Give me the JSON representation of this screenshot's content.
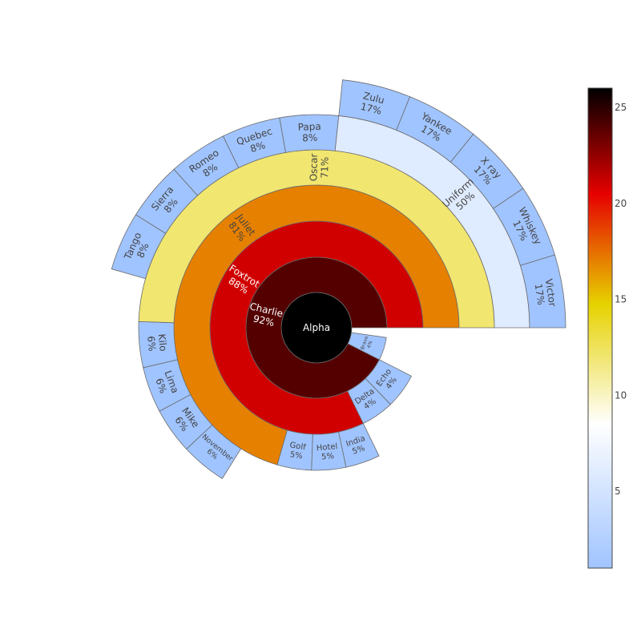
{
  "chart_data": {
    "type": "sunburst",
    "title": "",
    "root": "Alpha",
    "nodes": [
      {
        "id": "Alpha",
        "parent": null,
        "label": "Alpha",
        "percent": "",
        "color_value": 26
      },
      {
        "id": "Bravo",
        "parent": "Alpha",
        "label": "Bravo",
        "percent": "4%",
        "color_value": 1
      },
      {
        "id": "Charlie",
        "parent": "Alpha",
        "label": "Charlie",
        "percent": "92%",
        "color_value": 24
      },
      {
        "id": "Delta",
        "parent": "Charlie",
        "label": "Delta",
        "percent": "4%",
        "color_value": 1
      },
      {
        "id": "Echo",
        "parent": "Charlie",
        "label": "Echo",
        "percent": "4%",
        "color_value": 1
      },
      {
        "id": "Foxtrot",
        "parent": "Charlie",
        "label": "Foxtrot",
        "percent": "88%",
        "color_value": 21
      },
      {
        "id": "Golf",
        "parent": "Foxtrot",
        "label": "Golf",
        "percent": "5%",
        "color_value": 1
      },
      {
        "id": "Hotel",
        "parent": "Foxtrot",
        "label": "Hotel",
        "percent": "5%",
        "color_value": 1
      },
      {
        "id": "India",
        "parent": "Foxtrot",
        "label": "India",
        "percent": "5%",
        "color_value": 1
      },
      {
        "id": "Juliet",
        "parent": "Foxtrot",
        "label": "Juliet",
        "percent": "81%",
        "color_value": 17
      },
      {
        "id": "Kilo",
        "parent": "Juliet",
        "label": "Kilo",
        "percent": "6%",
        "color_value": 1
      },
      {
        "id": "Lima",
        "parent": "Juliet",
        "label": "Lima",
        "percent": "6%",
        "color_value": 1
      },
      {
        "id": "Mike",
        "parent": "Juliet",
        "label": "Mike",
        "percent": "6%",
        "color_value": 1
      },
      {
        "id": "November",
        "parent": "Juliet",
        "label": "November",
        "percent": "6%",
        "color_value": 1
      },
      {
        "id": "Oscar",
        "parent": "Juliet",
        "label": "Oscar",
        "percent": "71%",
        "color_value": 12
      },
      {
        "id": "Papa",
        "parent": "Oscar",
        "label": "Papa",
        "percent": "8%",
        "color_value": 1
      },
      {
        "id": "Quebec",
        "parent": "Oscar",
        "label": "Quebec",
        "percent": "8%",
        "color_value": 1
      },
      {
        "id": "Romeo",
        "parent": "Oscar",
        "label": "Romeo",
        "percent": "8%",
        "color_value": 1
      },
      {
        "id": "Sierra",
        "parent": "Oscar",
        "label": "Sierra",
        "percent": "8%",
        "color_value": 1
      },
      {
        "id": "Tango",
        "parent": "Oscar",
        "label": "Tango",
        "percent": "8%",
        "color_value": 1
      },
      {
        "id": "Uniform",
        "parent": "Oscar",
        "label": "Uniform",
        "percent": "50%",
        "color_value": 6
      },
      {
        "id": "Victor",
        "parent": "Uniform",
        "label": "Victor",
        "percent": "17%",
        "color_value": 1
      },
      {
        "id": "Whiskey",
        "parent": "Uniform",
        "label": "Whiskey",
        "percent": "17%",
        "color_value": 1
      },
      {
        "id": "X ray",
        "parent": "Uniform",
        "label": "X ray",
        "percent": "17%",
        "color_value": 1
      },
      {
        "id": "Yankee",
        "parent": "Uniform",
        "label": "Yankee",
        "percent": "17%",
        "color_value": 1
      },
      {
        "id": "Zulu",
        "parent": "Uniform",
        "label": "Zulu",
        "percent": "17%",
        "color_value": 1
      }
    ],
    "colorscale": {
      "name": "Hot (reversed)",
      "range": [
        1,
        26
      ],
      "ticks": [
        5,
        10,
        15,
        20,
        25
      ],
      "stops": [
        [
          0.0,
          "#a0c4ff"
        ],
        [
          0.3,
          "#ffffff"
        ],
        [
          0.55,
          "#e6d200"
        ],
        [
          0.78,
          "#e60000"
        ],
        [
          1.0,
          "#000000"
        ]
      ]
    }
  }
}
